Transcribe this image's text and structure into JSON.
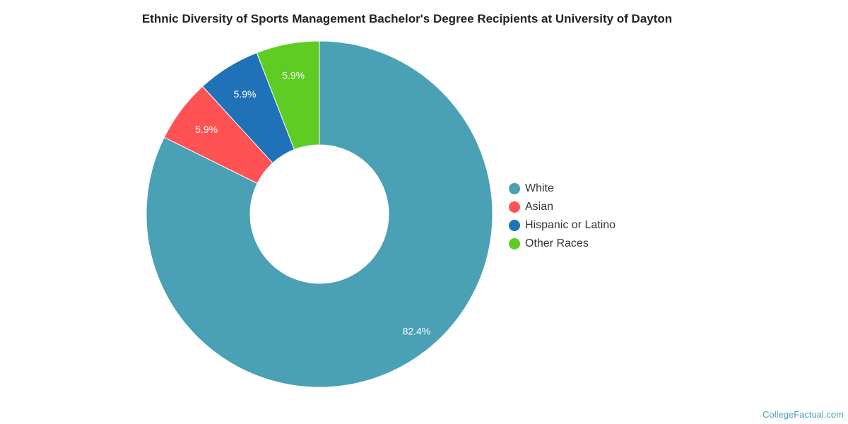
{
  "chart_data": {
    "type": "pie",
    "title": "Ethnic Diversity of Sports Management Bachelor's Degree Recipients at University of Dayton",
    "donut": true,
    "legend_position": "right",
    "series": [
      {
        "name": "White",
        "value": 82.4,
        "label": "82.4%",
        "color": "#4aa0b5"
      },
      {
        "name": "Asian",
        "value": 5.9,
        "label": "5.9%",
        "color": "#ff5254"
      },
      {
        "name": "Hispanic or Latino",
        "value": 5.9,
        "label": "5.9%",
        "color": "#1f72b8"
      },
      {
        "name": "Other Races",
        "value": 5.9,
        "label": "5.9%",
        "color": "#5fcc24"
      }
    ]
  },
  "credit": "CollegeFactual.com"
}
